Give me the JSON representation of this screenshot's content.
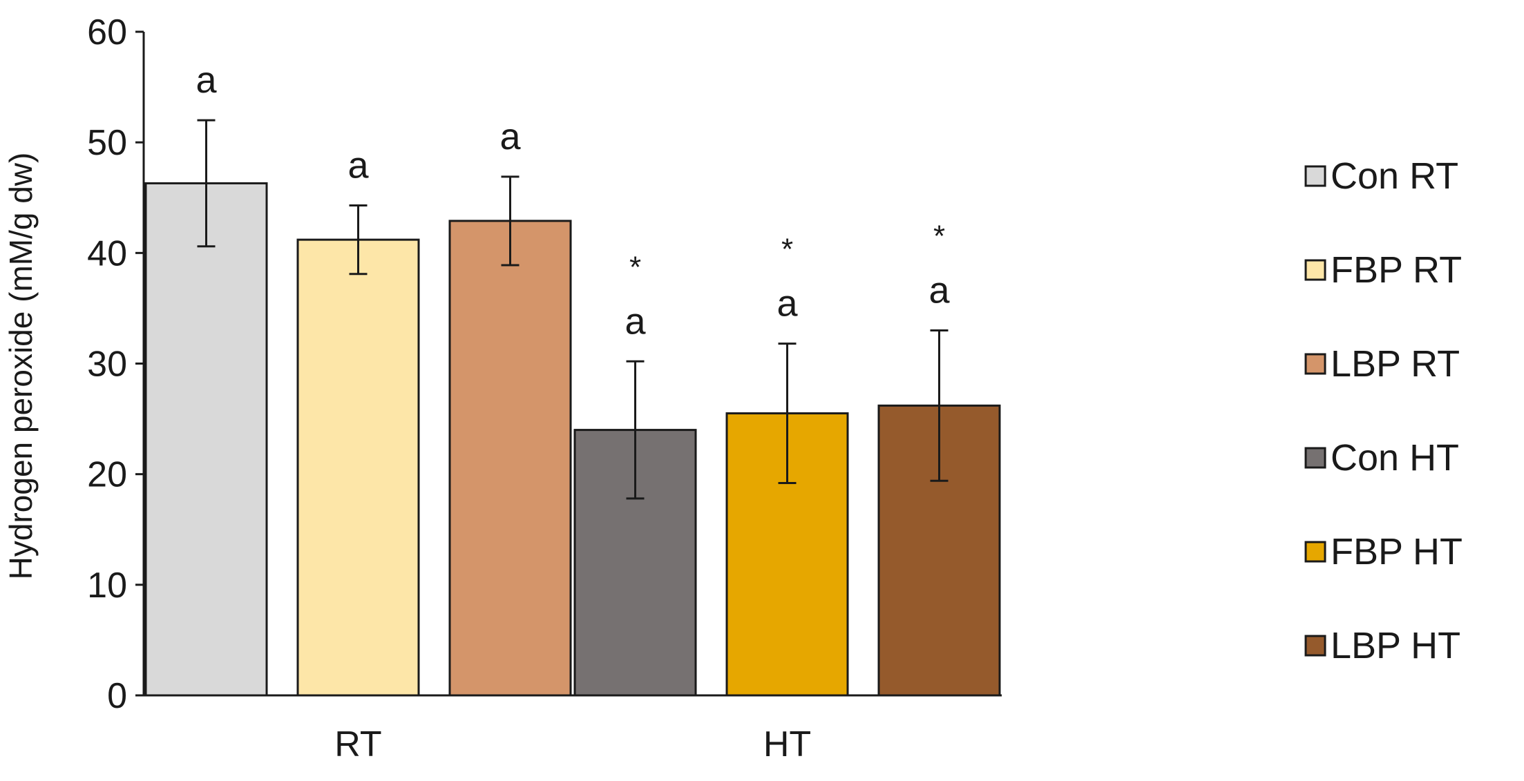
{
  "chart_data": {
    "type": "bar",
    "title": "",
    "xlabel": "",
    "ylabel": "Hydrogen peroxide (mM/g dw)",
    "ylim": [
      0,
      60
    ],
    "yticks": [
      0,
      10,
      20,
      30,
      40,
      50,
      60
    ],
    "grid": false,
    "legend_position": "right",
    "categories": [
      "RT",
      "HT"
    ],
    "series": [
      {
        "name": "Con RT",
        "color": "#d9d9d9",
        "values": [
          46.3,
          null
        ],
        "errors": [
          5.7,
          null
        ],
        "labels": [
          "a",
          null
        ],
        "stars": [
          null,
          null
        ]
      },
      {
        "name": "FBP RT",
        "color": "#fde6a8",
        "values": [
          41.2,
          null
        ],
        "errors": [
          3.1,
          null
        ],
        "labels": [
          "a",
          null
        ],
        "stars": [
          null,
          null
        ]
      },
      {
        "name": "LBP RT",
        "color": "#d4956a",
        "values": [
          42.9,
          null
        ],
        "errors": [
          4.0,
          null
        ],
        "labels": [
          "a",
          null
        ],
        "stars": [
          null,
          null
        ]
      },
      {
        "name": "Con HT",
        "color": "#767171",
        "values": [
          null,
          24.0
        ],
        "errors": [
          null,
          6.2
        ],
        "labels": [
          null,
          "a"
        ],
        "stars": [
          null,
          "*"
        ]
      },
      {
        "name": "FBP HT",
        "color": "#e6a700",
        "values": [
          null,
          25.5
        ],
        "errors": [
          null,
          6.3
        ],
        "labels": [
          null,
          "a"
        ],
        "stars": [
          null,
          "*"
        ]
      },
      {
        "name": "LBP HT",
        "color": "#955a2c",
        "values": [
          null,
          26.2
        ],
        "errors": [
          null,
          6.8
        ],
        "labels": [
          null,
          "a"
        ],
        "stars": [
          null,
          "*"
        ]
      }
    ]
  }
}
